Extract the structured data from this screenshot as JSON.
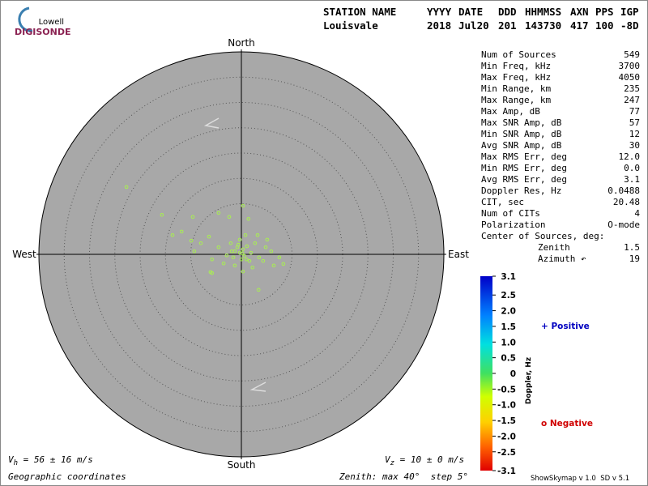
{
  "logo": {
    "top": "Lowell",
    "bottom": "DIGISONDE"
  },
  "header": {
    "labels": [
      "STATION NAME",
      "YYYY",
      "DATE",
      "DDD",
      "HHMMSS",
      "AXN",
      "PPS",
      "IGP"
    ],
    "values": [
      "Louisvale",
      "2018",
      "Jul20",
      "201",
      "143730",
      "417",
      "100",
      "-8D"
    ]
  },
  "stats": {
    "rows": [
      [
        "Num of Sources",
        "549"
      ],
      [
        "Min Freq, kHz",
        "3700"
      ],
      [
        "Max Freq, kHz",
        "4050"
      ],
      [
        "Min Range, km",
        "235"
      ],
      [
        "Max Range, km",
        "247"
      ],
      [
        "Max Amp, dB",
        "77"
      ],
      [
        "Max SNR Amp, dB",
        "57"
      ],
      [
        "Min SNR Amp, dB",
        "12"
      ],
      [
        "Avg SNR Amp, dB",
        "30"
      ],
      [
        "Max RMS Err, deg",
        "12.0"
      ],
      [
        "Min RMS Err, deg",
        "0.0"
      ],
      [
        "Avg RMS Err, deg",
        "3.1"
      ],
      [
        "Doppler Res, Hz",
        "0.0488"
      ],
      [
        "CIT, sec",
        "20.48"
      ],
      [
        "Num of CITs",
        "4"
      ],
      [
        "Polarization",
        "O-mode"
      ]
    ],
    "center_title": "Center of Sources, deg:",
    "center_rows": [
      [
        "Zenith",
        "1.5"
      ],
      [
        "Azimuth ↶",
        "19"
      ]
    ]
  },
  "chart_data": {
    "type": "polar-scatter",
    "directions": {
      "north": "North",
      "south": "South",
      "west": "West",
      "east": "East"
    },
    "xlim": [
      -40,
      40
    ],
    "ylim": [
      -40,
      40
    ],
    "rticks": [
      10,
      15,
      20,
      25,
      30,
      35
    ],
    "color": "#a8f050",
    "x": [
      -22.7,
      -15.7,
      -9.6,
      -4.5,
      -2.4,
      0.3,
      1.4,
      -13.6,
      -11.8,
      -9.9,
      -8.0,
      -6.4,
      -5.8,
      -9.3,
      -5.8,
      -3.5,
      -2.1,
      -1.3,
      -0.8,
      -0.3,
      0.3,
      0.6,
      0,
      1.1,
      -1.6,
      1.9,
      2.7,
      3.5,
      4.8,
      5.9,
      7.5,
      8.3,
      6.4,
      4.3,
      2.2,
      0.3,
      -1.3,
      -2.9,
      -4.5,
      -0.3,
      0.8,
      3.2,
      5.1,
      3.4,
      -6.1,
      1.6,
      -0.6,
      0.2,
      -1.9,
      1.0
    ],
    "values": [
      13.3,
      7.8,
      7.4,
      8.2,
      7.4,
      9.6,
      7.0,
      3.8,
      4.5,
      2.7,
      2.2,
      3.5,
      -1.0,
      0.6,
      -3.7,
      -1.8,
      2.2,
      0.6,
      1.4,
      0.3,
      1.0,
      -0.3,
      -1.0,
      1.6,
      -0.6,
      0.3,
      2.2,
      -0.6,
      1.4,
      0.6,
      -0.6,
      -1.9,
      -2.2,
      -1.3,
      -2.6,
      -3.4,
      -2.2,
      -0.2,
      1.4,
      2.9,
      3.8,
      3.8,
      2.9,
      -7.0,
      -3.5,
      -1.3,
      1.9,
      0.2,
      0.6,
      -1.0
    ],
    "vh": {
      "symbol": "V",
      "sub": "h",
      "text": " = 56 ± 16 m/s"
    },
    "vz": {
      "symbol": "V",
      "sub": "z",
      "text": " = 10 ± 0 m/s"
    },
    "coords_label": "Geographic coordinates",
    "zenith_label": "Zenith: max 40°  step 5°",
    "colorbar": {
      "title": "Doppler, Hz",
      "lim": [
        -3.1,
        3.1
      ],
      "ticks": [
        3.1,
        2.5,
        {
          "value": 2,
          "label": "2.0"
        },
        1.5,
        {
          "value": 1,
          "label": "1.0"
        },
        0.5,
        0,
        -0.5,
        {
          "value": -1,
          "label": "-1.0"
        },
        -1.5,
        {
          "value": -2,
          "label": "-2.0"
        },
        -2.5,
        -3.1
      ],
      "positive": "+ Positive",
      "negative": "o Negative"
    },
    "version": "ShowSkymap v 1.0  SD v 5.1"
  }
}
